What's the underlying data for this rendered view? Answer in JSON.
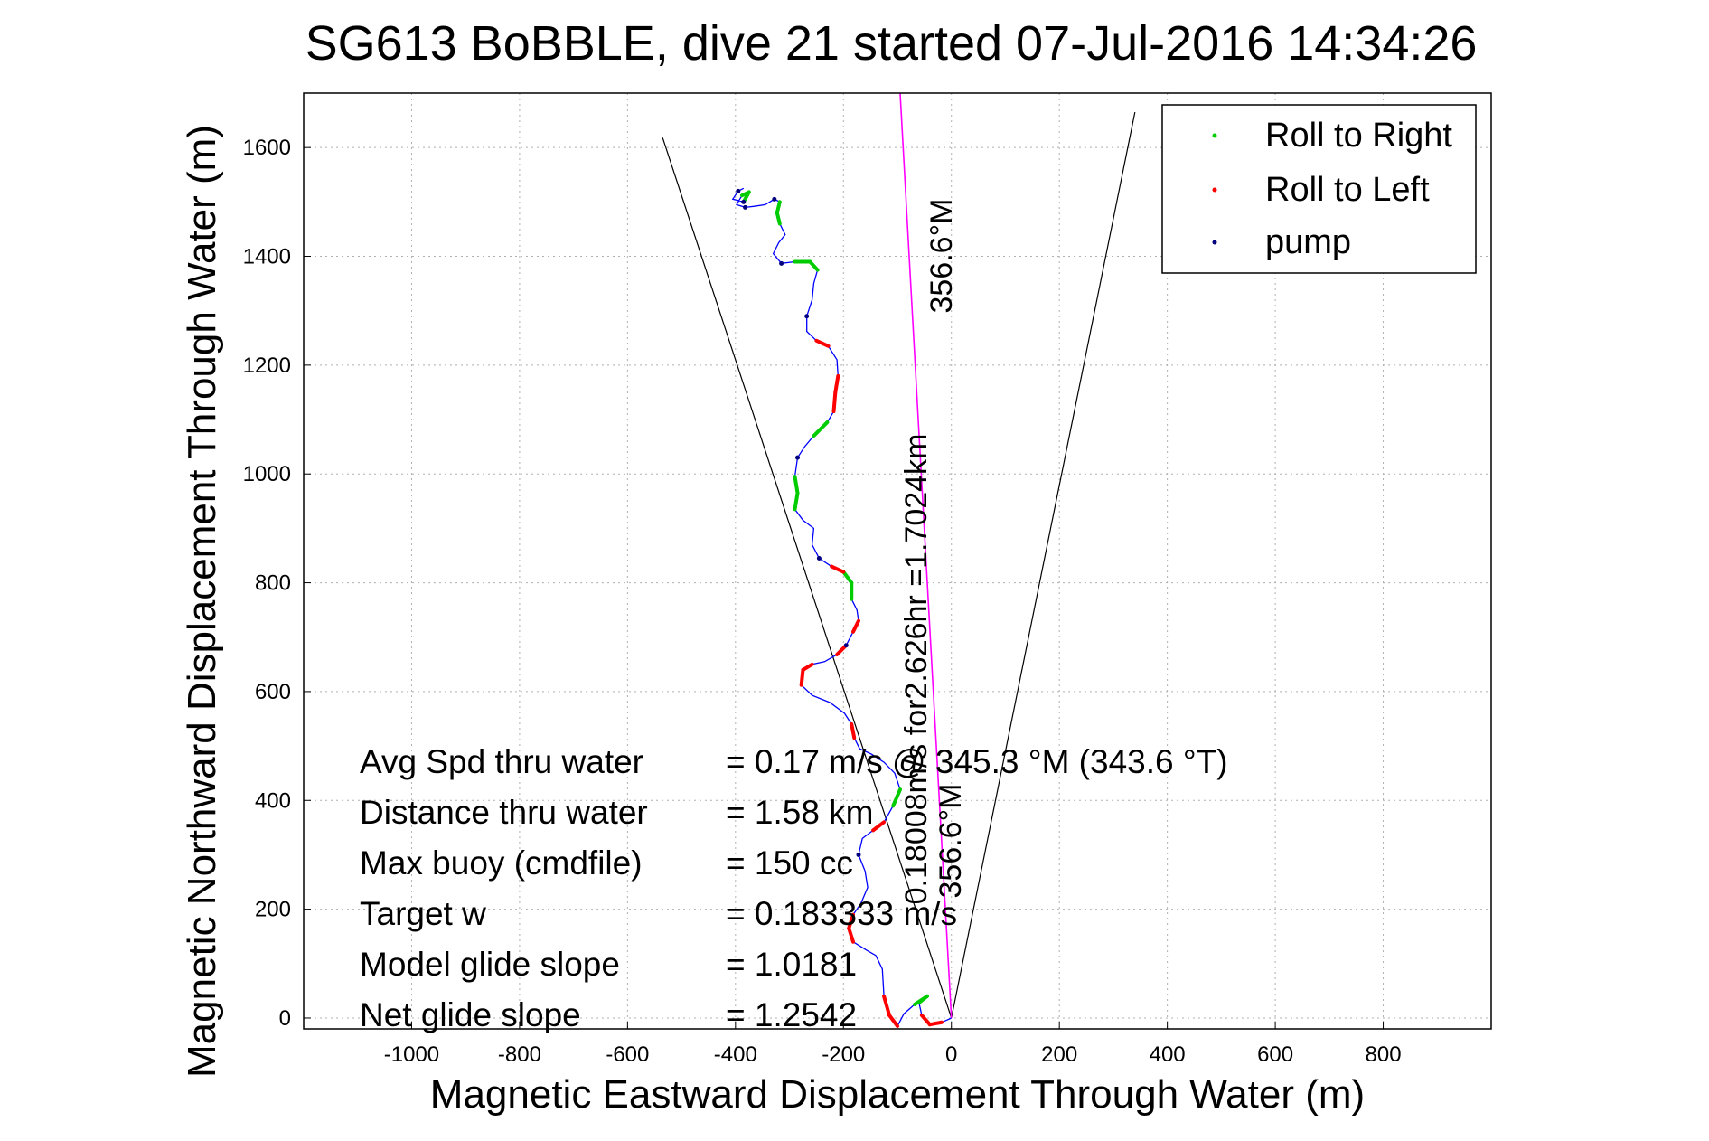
{
  "chart_data": {
    "type": "line",
    "title": "SG613 BoBBLE, dive 21 started 07-Jul-2016 14:34:26",
    "xlabel": "Magnetic Eastward Displacement Through Water (m)",
    "ylabel": "Magnetic Northward Displacement Through Water (m)",
    "xlim": [
      -1200,
      1000
    ],
    "ylim": [
      -20,
      1700
    ],
    "xticks": [
      -1000,
      -800,
      -600,
      -400,
      -200,
      0,
      200,
      400,
      600,
      800
    ],
    "yticks": [
      0,
      200,
      400,
      600,
      800,
      1000,
      1200,
      1400,
      1600
    ],
    "grid": true,
    "legend_position": "top-right",
    "legend": [
      {
        "label": "Roll to Right",
        "color": "#00cc00"
      },
      {
        "label": "Roll to Left",
        "color": "#ff0000"
      },
      {
        "label": "pump",
        "color": "#00007f"
      }
    ],
    "colors": {
      "track": "#0000ff",
      "roll_right": "#00cc00",
      "roll_left": "#ff0000",
      "pump": "#00007f",
      "cone": "#000000",
      "heading": "#ff00ff"
    },
    "series": [
      {
        "name": "track",
        "points": [
          [
            0,
            0
          ],
          [
            -18,
            -8
          ],
          [
            -40,
            -12
          ],
          [
            -55,
            5
          ],
          [
            -60,
            28
          ],
          [
            -45,
            40
          ],
          [
            -68,
            25
          ],
          [
            -88,
            8
          ],
          [
            -100,
            -15
          ],
          [
            -115,
            5
          ],
          [
            -125,
            40
          ],
          [
            -128,
            90
          ],
          [
            -140,
            115
          ],
          [
            -158,
            125
          ],
          [
            -182,
            140
          ],
          [
            -190,
            165
          ],
          [
            -182,
            190
          ],
          [
            -168,
            210
          ],
          [
            -155,
            240
          ],
          [
            -160,
            270
          ],
          [
            -172,
            300
          ],
          [
            -165,
            330
          ],
          [
            -145,
            345
          ],
          [
            -125,
            360
          ],
          [
            -108,
            390
          ],
          [
            -95,
            420
          ],
          [
            -105,
            450
          ],
          [
            -125,
            470
          ],
          [
            -148,
            485
          ],
          [
            -170,
            495
          ],
          [
            -180,
            515
          ],
          [
            -185,
            540
          ],
          [
            -198,
            560
          ],
          [
            -225,
            580
          ],
          [
            -258,
            593
          ],
          [
            -278,
            612
          ],
          [
            -275,
            640
          ],
          [
            -258,
            650
          ],
          [
            -235,
            655
          ],
          [
            -212,
            668
          ],
          [
            -195,
            685
          ],
          [
            -182,
            710
          ],
          [
            -172,
            730
          ],
          [
            -175,
            750
          ],
          [
            -185,
            770
          ],
          [
            -185,
            800
          ],
          [
            -200,
            820
          ],
          [
            -222,
            830
          ],
          [
            -245,
            845
          ],
          [
            -258,
            870
          ],
          [
            -255,
            900
          ],
          [
            -275,
            915
          ],
          [
            -290,
            935
          ],
          [
            -285,
            965
          ],
          [
            -290,
            995
          ],
          [
            -285,
            1030
          ],
          [
            -272,
            1050
          ],
          [
            -255,
            1070
          ],
          [
            -230,
            1095
          ],
          [
            -218,
            1115
          ],
          [
            -215,
            1150
          ],
          [
            -210,
            1180
          ],
          [
            -212,
            1210
          ],
          [
            -228,
            1235
          ],
          [
            -250,
            1245
          ],
          [
            -268,
            1262
          ],
          [
            -268,
            1290
          ],
          [
            -258,
            1320
          ],
          [
            -255,
            1350
          ],
          [
            -248,
            1375
          ],
          [
            -262,
            1390
          ],
          [
            -290,
            1390
          ],
          [
            -315,
            1387
          ],
          [
            -330,
            1405
          ],
          [
            -320,
            1425
          ],
          [
            -308,
            1440
          ],
          [
            -318,
            1460
          ],
          [
            -323,
            1480
          ],
          [
            -318,
            1500
          ],
          [
            -328,
            1505
          ],
          [
            -345,
            1495
          ],
          [
            -365,
            1492
          ],
          [
            -382,
            1490
          ],
          [
            -398,
            1495
          ],
          [
            -388,
            1512
          ],
          [
            -375,
            1518
          ],
          [
            -385,
            1500
          ],
          [
            -405,
            1505
          ],
          [
            -395,
            1520
          ],
          [
            -385,
            1525
          ]
        ]
      }
    ],
    "cone_lines": [
      {
        "from": [
          0,
          0
        ],
        "to": [
          -535,
          1618
        ]
      },
      {
        "from": [
          0,
          0
        ],
        "to": [
          340,
          1665
        ]
      }
    ],
    "heading_line": {
      "from": [
        -95,
        1700
      ],
      "to": [
        0,
        0
      ]
    },
    "annotations": {
      "heading_top": "356.6°M",
      "heading_mid": "356.6°M",
      "current": "0.18008m/s for2.626hr =1.7024km"
    },
    "stats": [
      {
        "label": "Avg Spd thru water",
        "value": "=  0.17 m/s @ 345.3 °M (343.6 °T)"
      },
      {
        "label": "Distance thru water",
        "value": "=  1.58 km"
      },
      {
        "label": "Max buoy (cmdfile)",
        "value": "= 150 cc"
      },
      {
        "label": "Target w",
        "value": "= 0.183333 m/s"
      },
      {
        "label": "Model glide slope",
        "value": "= 1.0181"
      },
      {
        "label": "Net glide slope",
        "value": "= 1.2542"
      }
    ]
  }
}
